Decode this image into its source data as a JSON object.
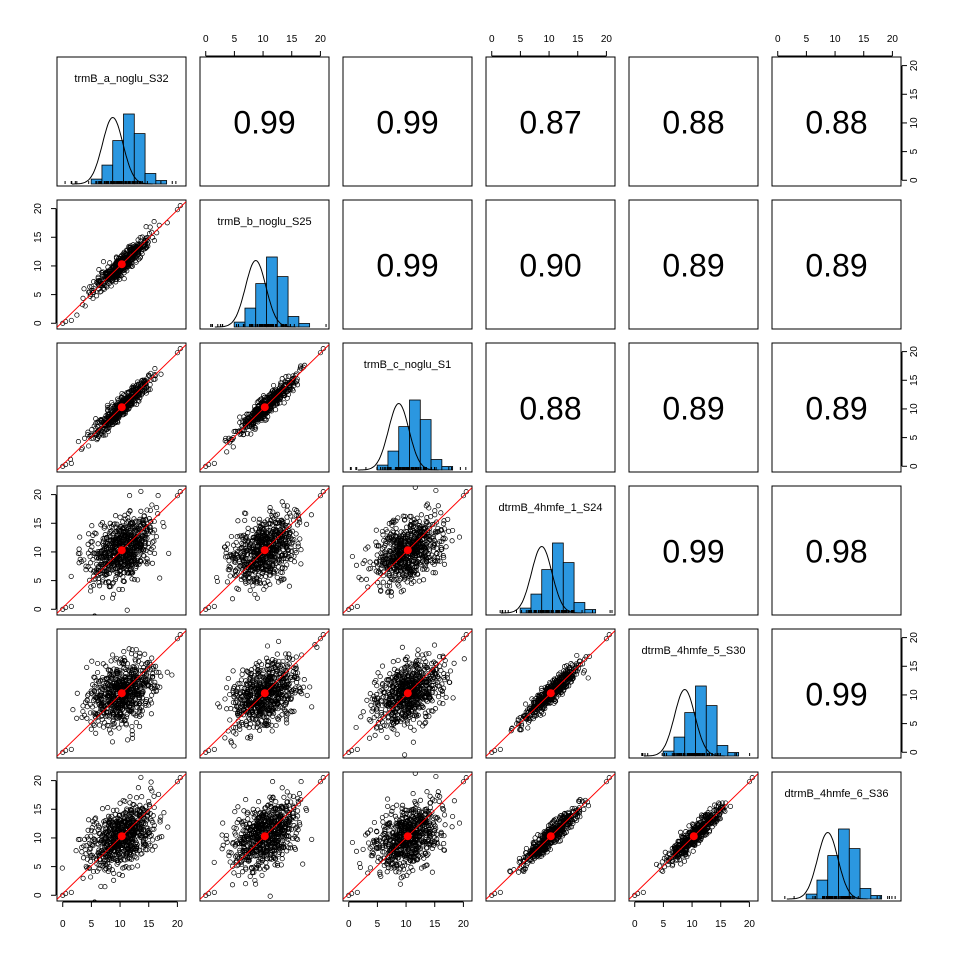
{
  "chart_data": {
    "type": "scatter-matrix",
    "variables": [
      "trmB_a_noglu_S32",
      "trmB_b_noglu_S25",
      "trmB_c_noglu_S1",
      "dtrmB_4hmfe_1_S24",
      "dtrmB_4hmfe_5_S30",
      "dtrmB_4hmfe_6_S36"
    ],
    "correlations": [
      [
        "",
        "0.99",
        "0.99",
        "0.87",
        "0.88",
        "0.88"
      ],
      [
        "",
        "",
        "0.99",
        "0.90",
        "0.89",
        "0.89"
      ],
      [
        "",
        "",
        "",
        "0.88",
        "0.89",
        "0.89"
      ],
      [
        "",
        "",
        "",
        "",
        "0.99",
        "0.98"
      ],
      [
        "",
        "",
        "",
        "",
        "",
        "0.99"
      ],
      [
        "",
        "",
        "",
        "",
        "",
        ""
      ]
    ],
    "axis_range": [
      -1,
      21.5
    ],
    "axis_ticks": [
      "0",
      "5",
      "10",
      "15",
      "20"
    ],
    "histogram": {
      "bin_edges": [
        4,
        6,
        8,
        10,
        12,
        14,
        16,
        18
      ],
      "relative_heights": [
        0.07,
        0.27,
        0.62,
        1.0,
        0.72,
        0.15,
        0.05
      ]
    },
    "mean_point": [
      10.3,
      10.3
    ],
    "colors": {
      "histogram_fill": "#2b97e0",
      "fit_line": "#ff0000",
      "mean_point": "#ff0000",
      "points": "#000000"
    }
  }
}
